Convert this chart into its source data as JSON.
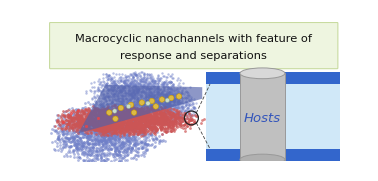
{
  "title_line1": "Macrocyclic nanochannels with feature of",
  "title_line2": "response and separations",
  "title_box_color": "#eef5e0",
  "title_box_edge_color": "#c8dba0",
  "title_text_color": "#111111",
  "background_color": "#ffffff",
  "channel_bg_color": "#d0e8f8",
  "channel_stripe_color": "#3366cc",
  "cylinder_body_color": "#c0c0c0",
  "cylinder_shade_color": "#b0b0b0",
  "cylinder_top_color": "#d8d8d8",
  "hosts_text_color": "#3355bb",
  "hosts_label": "Hosts",
  "blue_cloud_color": "#7080c8",
  "red_membrane_color": "#cc5555",
  "blue_slab_color": "#5060aa",
  "yellow_dot_color": "#ddbb44",
  "green_dot_color": "#aaccaa"
}
